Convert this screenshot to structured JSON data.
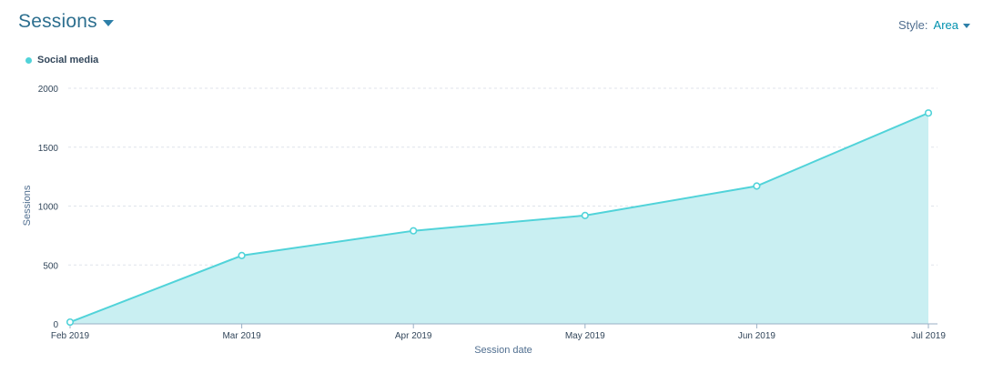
{
  "header": {
    "title": "Sessions"
  },
  "style_control": {
    "label": "Style:",
    "value": "Area"
  },
  "chart_data": {
    "type": "area",
    "xlabel": "Session date",
    "ylabel": "Sessions",
    "categories": [
      "Feb 2019",
      "Mar 2019",
      "Apr 2019",
      "May 2019",
      "Jun 2019",
      "Jul 2019"
    ],
    "ylim": [
      0,
      2000
    ],
    "yticks": [
      0,
      500,
      1000,
      1500,
      2000
    ],
    "grid": true,
    "legend": "top-left",
    "series": [
      {
        "name": "Social media",
        "color": "#51d3d9",
        "fill": "#c9eff2",
        "values": [
          15,
          580,
          790,
          920,
          1170,
          1790
        ]
      }
    ]
  }
}
